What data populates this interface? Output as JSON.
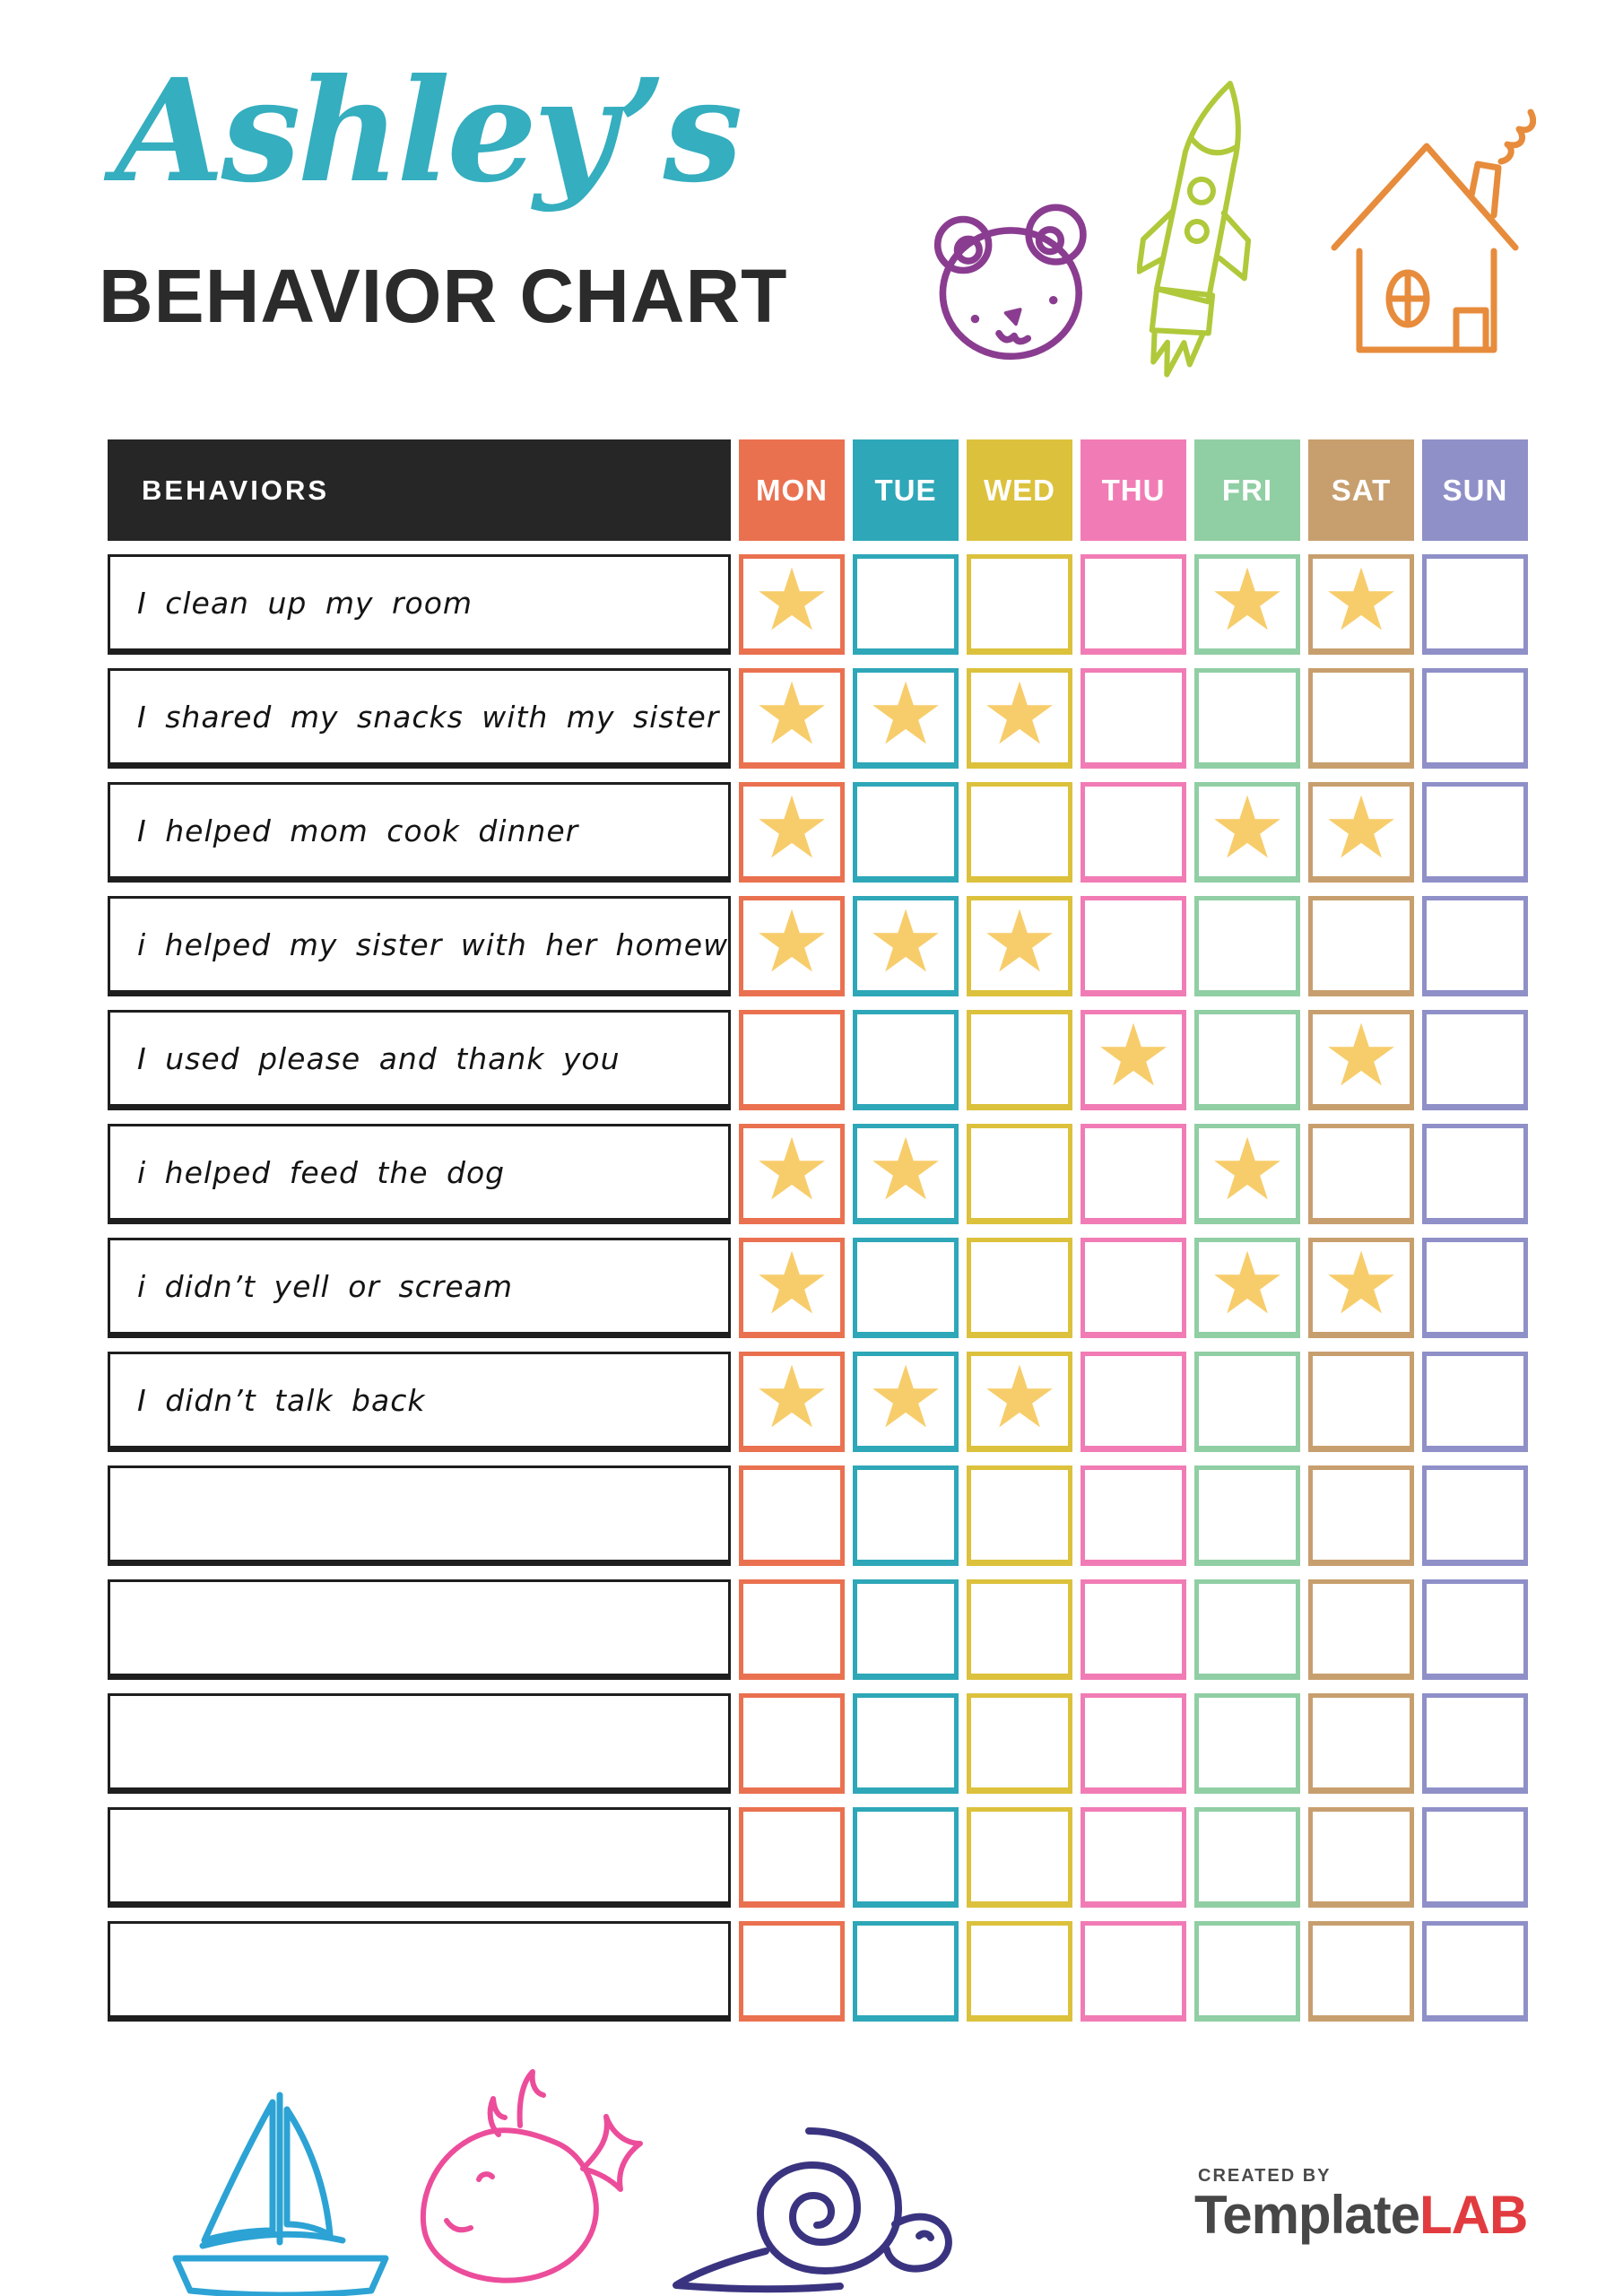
{
  "page_title": {
    "name_script": "Ashley’s",
    "chart_title": "BEHAVIOR CHART"
  },
  "colors": {
    "title_script": "#35aebf",
    "title_main": "#2b2b2b",
    "header_bg": "#262626",
    "star": "#f7cd6b",
    "bear": "#8a3d90",
    "rocket": "#afc93b",
    "house": "#e78c3c",
    "sailboat": "#2ca3d4",
    "whale": "#ec4d9b",
    "snail": "#3a3480"
  },
  "table": {
    "header_label": "BEHAVIORS",
    "days": [
      {
        "label": "MON",
        "color": "#ea7150"
      },
      {
        "label": "TUE",
        "color": "#2ea7b8"
      },
      {
        "label": "WED",
        "color": "#dcc13c"
      },
      {
        "label": "THU",
        "color": "#f17cb5"
      },
      {
        "label": "FRI",
        "color": "#90cea4"
      },
      {
        "label": "SAT",
        "color": "#c79f6e"
      },
      {
        "label": "SUN",
        "color": "#8f90c8"
      }
    ],
    "rows": [
      {
        "label": "I clean up my room",
        "stars": [
          1,
          0,
          0,
          0,
          1,
          1,
          0
        ]
      },
      {
        "label": "I shared my snacks with my sister",
        "stars": [
          1,
          1,
          1,
          0,
          0,
          0,
          0
        ]
      },
      {
        "label": "I helped mom cook dinner",
        "stars": [
          1,
          0,
          0,
          0,
          1,
          1,
          0
        ]
      },
      {
        "label": "i helped my sister with her homework",
        "stars": [
          1,
          1,
          1,
          0,
          0,
          0,
          0
        ]
      },
      {
        "label": "I used please and thank you",
        "stars": [
          0,
          0,
          0,
          1,
          0,
          1,
          0
        ]
      },
      {
        "label": "i helped feed the dog",
        "stars": [
          1,
          1,
          0,
          0,
          1,
          0,
          0
        ]
      },
      {
        "label": "i didn’t yell or scream",
        "stars": [
          1,
          0,
          0,
          0,
          1,
          1,
          0
        ]
      },
      {
        "label": "I didn’t talk back",
        "stars": [
          1,
          1,
          1,
          0,
          0,
          0,
          0
        ]
      },
      {
        "label": "",
        "stars": [
          0,
          0,
          0,
          0,
          0,
          0,
          0
        ]
      },
      {
        "label": "",
        "stars": [
          0,
          0,
          0,
          0,
          0,
          0,
          0
        ]
      },
      {
        "label": "",
        "stars": [
          0,
          0,
          0,
          0,
          0,
          0,
          0
        ]
      },
      {
        "label": "",
        "stars": [
          0,
          0,
          0,
          0,
          0,
          0,
          0
        ]
      },
      {
        "label": "",
        "stars": [
          0,
          0,
          0,
          0,
          0,
          0,
          0
        ]
      }
    ]
  },
  "icons": {
    "star_glyph": "★",
    "header_doodles": [
      "teddy-bear-icon",
      "rocket-icon",
      "house-icon"
    ],
    "footer_doodles": [
      "sailboat-icon",
      "whale-icon",
      "snail-icon"
    ]
  },
  "footer_brand": {
    "created_by": "CREATED BY",
    "brand_name": "Template",
    "brand_suffix": "LAB"
  }
}
